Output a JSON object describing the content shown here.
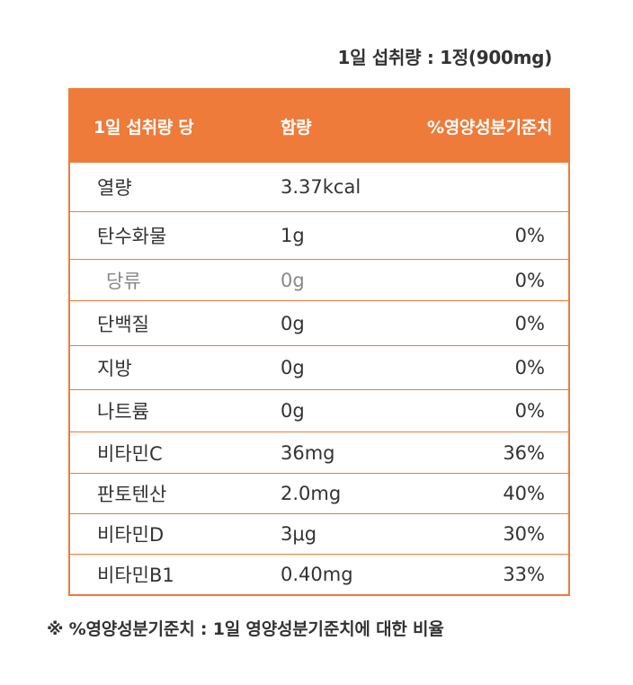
{
  "serving": "1일 섭취량 : 1정(900mg)",
  "headers": {
    "item": "1일 섭취량 당",
    "amount": "함량",
    "percent": "%영양성분기준치"
  },
  "rows": [
    {
      "name": "열량",
      "amount": "3.37kcal",
      "percent": ""
    },
    {
      "name": "탄수화물",
      "amount": "1g",
      "percent": "0%"
    },
    {
      "name": "당류",
      "amount": "0g",
      "percent": "0%"
    },
    {
      "name": "단백질",
      "amount": "0g",
      "percent": "0%"
    },
    {
      "name": "지방",
      "amount": "0g",
      "percent": "0%"
    },
    {
      "name": "나트륨",
      "amount": "0g",
      "percent": "0%"
    },
    {
      "name": "비타민C",
      "amount": "36mg",
      "percent": "36%"
    },
    {
      "name": "판토텐산",
      "amount": "2.0mg",
      "percent": "40%"
    },
    {
      "name": "비타민D",
      "amount": "3μg",
      "percent": "30%"
    },
    {
      "name": "비타민B1",
      "amount": "0.40mg",
      "percent": "33%"
    }
  ],
  "footnote": "※ %영양성분기준치 : 1일 영양성분기준치에 대한 비율",
  "colors": {
    "accent": "#ee7b3a",
    "header_text": "#ffffff",
    "body_text": "#333333",
    "sub_text": "#888888"
  }
}
